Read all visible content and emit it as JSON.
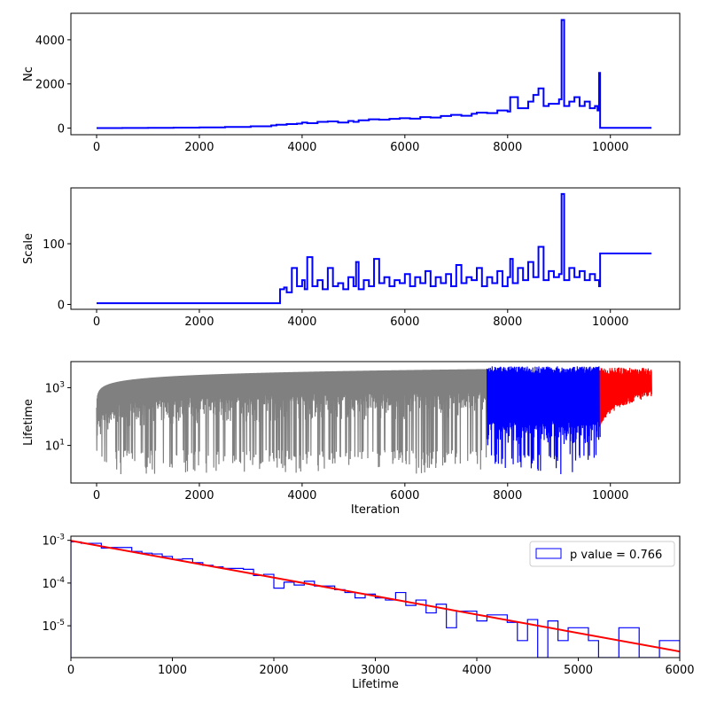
{
  "chart_data": [
    {
      "type": "line",
      "ylabel": "Nc",
      "xlabel": "",
      "xlim": [
        -500,
        11350
      ],
      "ylim": [
        -300,
        5200
      ],
      "xticks": [
        "0",
        "2000",
        "4000",
        "6000",
        "8000",
        "10000"
      ],
      "yticks": [
        "0",
        "2000",
        "4000"
      ],
      "series": [
        {
          "color": "#0000ff",
          "x": [
            0,
            500,
            1000,
            1500,
            2000,
            2500,
            3000,
            3400,
            3500,
            3700,
            3900,
            4000,
            4100,
            4300,
            4500,
            4700,
            4900,
            5000,
            5100,
            5300,
            5500,
            5700,
            5900,
            6100,
            6300,
            6500,
            6700,
            6900,
            7100,
            7300,
            7400,
            7600,
            7800,
            8000,
            8050,
            8200,
            8400,
            8500,
            8600,
            8700,
            8800,
            9000,
            9050,
            9100,
            9200,
            9300,
            9400,
            9500,
            9600,
            9700,
            9750,
            9780,
            9800,
            10800
          ],
          "y": [
            0,
            5,
            10,
            20,
            30,
            50,
            80,
            120,
            150,
            180,
            200,
            250,
            220,
            280,
            300,
            250,
            320,
            280,
            350,
            400,
            380,
            420,
            450,
            430,
            500,
            480,
            550,
            600,
            560,
            650,
            700,
            680,
            800,
            750,
            1400,
            900,
            1200,
            1500,
            1800,
            1000,
            1100,
            1300,
            4900,
            1000,
            1200,
            1400,
            1000,
            1200,
            900,
            1000,
            800,
            2500,
            10,
            10
          ]
        }
      ]
    },
    {
      "type": "line",
      "ylabel": "Scale",
      "xlabel": "",
      "xlim": [
        -500,
        11350
      ],
      "ylim": [
        -8,
        192
      ],
      "xticks": [
        "0",
        "2000",
        "4000",
        "6000",
        "8000",
        "10000"
      ],
      "yticks": [
        "0",
        "100"
      ],
      "series": [
        {
          "color": "#0000ff",
          "x": [
            0,
            3560,
            3570,
            3650,
            3700,
            3800,
            3900,
            4000,
            4050,
            4100,
            4200,
            4300,
            4400,
            4500,
            4600,
            4700,
            4800,
            4900,
            5000,
            5050,
            5100,
            5200,
            5300,
            5400,
            5500,
            5600,
            5700,
            5800,
            5900,
            6000,
            6100,
            6200,
            6300,
            6400,
            6500,
            6600,
            6700,
            6800,
            6900,
            7000,
            7100,
            7200,
            7300,
            7400,
            7500,
            7600,
            7700,
            7800,
            7900,
            8000,
            8050,
            8100,
            8200,
            8300,
            8400,
            8500,
            8600,
            8700,
            8800,
            8900,
            9000,
            9050,
            9100,
            9200,
            9300,
            9400,
            9500,
            9600,
            9700,
            9780,
            9800,
            10800
          ],
          "y": [
            2,
            2,
            25,
            28,
            20,
            60,
            30,
            40,
            25,
            78,
            30,
            40,
            25,
            60,
            30,
            35,
            25,
            45,
            30,
            70,
            25,
            40,
            30,
            75,
            35,
            45,
            30,
            40,
            35,
            50,
            30,
            45,
            35,
            55,
            30,
            45,
            35,
            50,
            30,
            65,
            35,
            45,
            40,
            60,
            30,
            45,
            35,
            55,
            30,
            45,
            75,
            35,
            60,
            40,
            70,
            45,
            95,
            40,
            55,
            45,
            50,
            182,
            40,
            60,
            45,
            55,
            40,
            50,
            40,
            30,
            84,
            84
          ]
        }
      ]
    },
    {
      "type": "line",
      "ylabel": "Lifetime",
      "xlabel": "Iteration",
      "xlim": [
        -500,
        11350
      ],
      "ylim": [
        0.5,
        8000
      ],
      "yscale": "log",
      "xticks": [
        "0",
        "2000",
        "4000",
        "6000",
        "8000",
        "10000"
      ],
      "yticks": [
        "10^1",
        "10^3"
      ],
      "series": [
        {
          "color": "#808080",
          "x_range": [
            0,
            7600
          ],
          "upper_envelope": "rising from 0 to about 4500",
          "lower": "noisy, frequent dips to 1-10"
        },
        {
          "color": "#0000ff",
          "x_range": [
            7600,
            9800
          ],
          "upper_envelope": "about 5000",
          "lower": "noisy, dips to about 1"
        },
        {
          "color": "#ff0000",
          "x_range": [
            9800,
            10800
          ],
          "upper_envelope": "about 5000",
          "lower": "rising from 50 to about 800"
        }
      ]
    },
    {
      "type": "histogram",
      "ylabel": "",
      "xlabel": "Lifetime",
      "xlim": [
        0,
        6000
      ],
      "ylim": [
        1.8e-06,
        0.00125
      ],
      "yscale": "log",
      "xticks": [
        "0",
        "1000",
        "2000",
        "3000",
        "4000",
        "5000",
        "6000"
      ],
      "yticks": [
        "10^-3",
        "10^-4",
        "10^-5"
      ],
      "legend": {
        "label": "p value = 0.766",
        "position": "top-right"
      },
      "bin_width": 200,
      "bins": [
        {
          "x": 0,
          "v": 0.00092
        },
        {
          "x": 100,
          "v": 0.00085
        },
        {
          "x": 300,
          "v": 0.00066
        },
        {
          "x": 400,
          "v": 0.00068
        },
        {
          "x": 600,
          "v": 0.00055
        },
        {
          "x": 700,
          "v": 0.0005
        },
        {
          "x": 800,
          "v": 0.00048
        },
        {
          "x": 900,
          "v": 0.00042
        },
        {
          "x": 1000,
          "v": 0.00036
        },
        {
          "x": 1100,
          "v": 0.00037
        },
        {
          "x": 1200,
          "v": 0.0003
        },
        {
          "x": 1300,
          "v": 0.00026
        },
        {
          "x": 1400,
          "v": 0.00024
        },
        {
          "x": 1500,
          "v": 0.00022
        },
        {
          "x": 1700,
          "v": 0.00021
        },
        {
          "x": 1800,
          "v": 0.00015
        },
        {
          "x": 1900,
          "v": 0.00016
        },
        {
          "x": 2000,
          "v": 7.6e-05
        },
        {
          "x": 2100,
          "v": 0.000105
        },
        {
          "x": 2200,
          "v": 9e-05
        },
        {
          "x": 2300,
          "v": 0.00011
        },
        {
          "x": 2400,
          "v": 8.5e-05
        },
        {
          "x": 2600,
          "v": 7e-05
        },
        {
          "x": 2700,
          "v": 6e-05
        },
        {
          "x": 2800,
          "v": 4.5e-05
        },
        {
          "x": 2900,
          "v": 5.5e-05
        },
        {
          "x": 3000,
          "v": 4.5e-05
        },
        {
          "x": 3100,
          "v": 4e-05
        },
        {
          "x": 3200,
          "v": 6e-05
        },
        {
          "x": 3300,
          "v": 3e-05
        },
        {
          "x": 3400,
          "v": 4e-05
        },
        {
          "x": 3500,
          "v": 2e-05
        },
        {
          "x": 3600,
          "v": 3.2e-05
        },
        {
          "x": 3700,
          "v": 9e-06
        },
        {
          "x": 3800,
          "v": 2.2e-05
        },
        {
          "x": 4000,
          "v": 1.3e-05
        },
        {
          "x": 4100,
          "v": 1.8e-05
        },
        {
          "x": 4300,
          "v": 1.2e-05
        },
        {
          "x": 4400,
          "v": 4.5e-06
        },
        {
          "x": 4500,
          "v": 1.4e-05
        },
        {
          "x": 4600,
          "v": 1.8e-06
        },
        {
          "x": 4700,
          "v": 1.3e-05
        },
        {
          "x": 4800,
          "v": 4.5e-06
        },
        {
          "x": 4900,
          "v": 9e-06
        },
        {
          "x": 5100,
          "v": 4.5e-06
        },
        {
          "x": 5200,
          "v": 1.8e-06
        },
        {
          "x": 5400,
          "v": 9e-06
        },
        {
          "x": 5600,
          "v": 1.8e-06
        },
        {
          "x": 5800,
          "v": 4.5e-06
        }
      ],
      "fit": {
        "color": "#ff0000",
        "x": [
          0,
          6000
        ],
        "y": [
          0.00098,
          2.5e-06
        ]
      },
      "colors": {
        "hist": "#0000ff"
      }
    }
  ]
}
